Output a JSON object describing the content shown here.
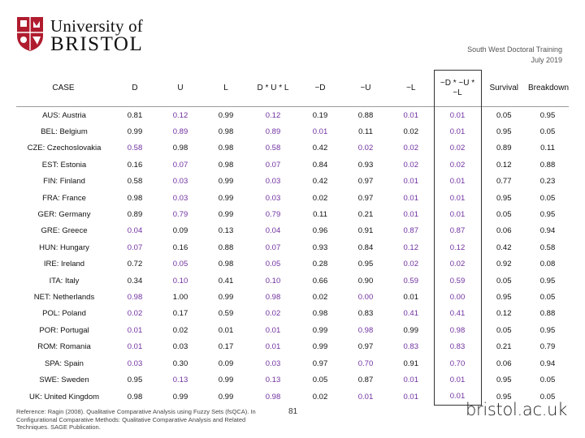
{
  "header": {
    "logo_line1": "University of",
    "logo_line2": "BRISTOL",
    "note_line1": "South West Doctoral Training",
    "note_line2": "July 2019"
  },
  "table": {
    "columns": [
      "CASE",
      "D",
      "U",
      "L",
      "D * U * L",
      "~D",
      "~U",
      "~L",
      "~D * ~U * ~L",
      "Survival",
      "Breakdown"
    ],
    "rows": [
      {
        "case": "AUS: Austria",
        "values": [
          [
            "0.81",
            "d"
          ],
          [
            "0.12",
            "p"
          ],
          [
            "0.99",
            "d"
          ],
          [
            "0.12",
            "p"
          ],
          [
            "0.19",
            "d"
          ],
          [
            "0.88",
            "d"
          ],
          [
            "0.01",
            "p"
          ],
          [
            "0.01",
            "p"
          ],
          [
            "0.05",
            "d"
          ],
          [
            "0.95",
            "d"
          ]
        ]
      },
      {
        "case": "BEL: Belgium",
        "values": [
          [
            "0.99",
            "d"
          ],
          [
            "0.89",
            "p"
          ],
          [
            "0.98",
            "d"
          ],
          [
            "0.89",
            "p"
          ],
          [
            "0.01",
            "p"
          ],
          [
            "0.11",
            "d"
          ],
          [
            "0.02",
            "d"
          ],
          [
            "0.01",
            "p"
          ],
          [
            "0.95",
            "d"
          ],
          [
            "0.05",
            "d"
          ]
        ]
      },
      {
        "case": "CZE: Czechoslovakia",
        "values": [
          [
            "0.58",
            "p"
          ],
          [
            "0.98",
            "d"
          ],
          [
            "0.98",
            "d"
          ],
          [
            "0.58",
            "p"
          ],
          [
            "0.42",
            "d"
          ],
          [
            "0.02",
            "p"
          ],
          [
            "0.02",
            "p"
          ],
          [
            "0.02",
            "p"
          ],
          [
            "0.89",
            "d"
          ],
          [
            "0.11",
            "d"
          ]
        ]
      },
      {
        "case": "EST: Estonia",
        "values": [
          [
            "0.16",
            "d"
          ],
          [
            "0.07",
            "p"
          ],
          [
            "0.98",
            "d"
          ],
          [
            "0.07",
            "p"
          ],
          [
            "0.84",
            "d"
          ],
          [
            "0.93",
            "d"
          ],
          [
            "0.02",
            "p"
          ],
          [
            "0.02",
            "p"
          ],
          [
            "0.12",
            "d"
          ],
          [
            "0.88",
            "d"
          ]
        ]
      },
      {
        "case": "FIN: Finland",
        "values": [
          [
            "0.58",
            "d"
          ],
          [
            "0.03",
            "p"
          ],
          [
            "0.99",
            "d"
          ],
          [
            "0.03",
            "p"
          ],
          [
            "0.42",
            "d"
          ],
          [
            "0.97",
            "d"
          ],
          [
            "0.01",
            "p"
          ],
          [
            "0.01",
            "p"
          ],
          [
            "0.77",
            "d"
          ],
          [
            "0.23",
            "d"
          ]
        ]
      },
      {
        "case": "FRA: France",
        "values": [
          [
            "0.98",
            "d"
          ],
          [
            "0.03",
            "p"
          ],
          [
            "0.99",
            "d"
          ],
          [
            "0.03",
            "p"
          ],
          [
            "0.02",
            "d"
          ],
          [
            "0.97",
            "d"
          ],
          [
            "0.01",
            "p"
          ],
          [
            "0.01",
            "p"
          ],
          [
            "0.95",
            "d"
          ],
          [
            "0.05",
            "d"
          ]
        ]
      },
      {
        "case": "GER: Germany",
        "values": [
          [
            "0.89",
            "d"
          ],
          [
            "0.79",
            "p"
          ],
          [
            "0.99",
            "d"
          ],
          [
            "0.79",
            "p"
          ],
          [
            "0.11",
            "d"
          ],
          [
            "0.21",
            "d"
          ],
          [
            "0.01",
            "p"
          ],
          [
            "0.01",
            "p"
          ],
          [
            "0.05",
            "d"
          ],
          [
            "0.95",
            "d"
          ]
        ]
      },
      {
        "case": "GRE: Greece",
        "values": [
          [
            "0.04",
            "p"
          ],
          [
            "0.09",
            "d"
          ],
          [
            "0.13",
            "d"
          ],
          [
            "0.04",
            "p"
          ],
          [
            "0.96",
            "d"
          ],
          [
            "0.91",
            "d"
          ],
          [
            "0.87",
            "p"
          ],
          [
            "0.87",
            "p"
          ],
          [
            "0.06",
            "d"
          ],
          [
            "0.94",
            "d"
          ]
        ]
      },
      {
        "case": "HUN: Hungary",
        "values": [
          [
            "0.07",
            "p"
          ],
          [
            "0.16",
            "d"
          ],
          [
            "0.88",
            "d"
          ],
          [
            "0.07",
            "p"
          ],
          [
            "0.93",
            "d"
          ],
          [
            "0.84",
            "d"
          ],
          [
            "0.12",
            "p"
          ],
          [
            "0.12",
            "p"
          ],
          [
            "0.42",
            "d"
          ],
          [
            "0.58",
            "d"
          ]
        ]
      },
      {
        "case": "IRE: Ireland",
        "values": [
          [
            "0.72",
            "d"
          ],
          [
            "0.05",
            "p"
          ],
          [
            "0.98",
            "d"
          ],
          [
            "0.05",
            "p"
          ],
          [
            "0.28",
            "d"
          ],
          [
            "0.95",
            "d"
          ],
          [
            "0.02",
            "p"
          ],
          [
            "0.02",
            "p"
          ],
          [
            "0.92",
            "d"
          ],
          [
            "0.08",
            "d"
          ]
        ]
      },
      {
        "case": "ITA: Italy",
        "values": [
          [
            "0.34",
            "d"
          ],
          [
            "0.10",
            "p"
          ],
          [
            "0.41",
            "d"
          ],
          [
            "0.10",
            "p"
          ],
          [
            "0.66",
            "d"
          ],
          [
            "0.90",
            "d"
          ],
          [
            "0.59",
            "p"
          ],
          [
            "0.59",
            "p"
          ],
          [
            "0.05",
            "d"
          ],
          [
            "0.95",
            "d"
          ]
        ]
      },
      {
        "case": "NET: Netherlands",
        "values": [
          [
            "0.98",
            "p"
          ],
          [
            "1.00",
            "d"
          ],
          [
            "0.99",
            "d"
          ],
          [
            "0.98",
            "p"
          ],
          [
            "0.02",
            "d"
          ],
          [
            "0.00",
            "p"
          ],
          [
            "0.01",
            "d"
          ],
          [
            "0.00",
            "p"
          ],
          [
            "0.95",
            "d"
          ],
          [
            "0.05",
            "d"
          ]
        ]
      },
      {
        "case": "POL: Poland",
        "values": [
          [
            "0.02",
            "p"
          ],
          [
            "0.17",
            "d"
          ],
          [
            "0.59",
            "d"
          ],
          [
            "0.02",
            "p"
          ],
          [
            "0.98",
            "d"
          ],
          [
            "0.83",
            "d"
          ],
          [
            "0.41",
            "p"
          ],
          [
            "0.41",
            "p"
          ],
          [
            "0.12",
            "d"
          ],
          [
            "0.88",
            "d"
          ]
        ]
      },
      {
        "case": "POR: Portugal",
        "values": [
          [
            "0.01",
            "p"
          ],
          [
            "0.02",
            "d"
          ],
          [
            "0.01",
            "d"
          ],
          [
            "0.01",
            "p"
          ],
          [
            "0.99",
            "d"
          ],
          [
            "0.98",
            "p"
          ],
          [
            "0.99",
            "d"
          ],
          [
            "0.98",
            "p"
          ],
          [
            "0.05",
            "d"
          ],
          [
            "0.95",
            "d"
          ]
        ]
      },
      {
        "case": "ROM: Romania",
        "values": [
          [
            "0.01",
            "p"
          ],
          [
            "0.03",
            "d"
          ],
          [
            "0.17",
            "d"
          ],
          [
            "0.01",
            "p"
          ],
          [
            "0.99",
            "d"
          ],
          [
            "0.97",
            "d"
          ],
          [
            "0.83",
            "p"
          ],
          [
            "0.83",
            "p"
          ],
          [
            "0.21",
            "d"
          ],
          [
            "0.79",
            "d"
          ]
        ]
      },
      {
        "case": "SPA: Spain",
        "values": [
          [
            "0.03",
            "p"
          ],
          [
            "0.30",
            "d"
          ],
          [
            "0.09",
            "d"
          ],
          [
            "0.03",
            "p"
          ],
          [
            "0.97",
            "d"
          ],
          [
            "0.70",
            "p"
          ],
          [
            "0.91",
            "d"
          ],
          [
            "0.70",
            "p"
          ],
          [
            "0.06",
            "d"
          ],
          [
            "0.94",
            "d"
          ]
        ]
      },
      {
        "case": "SWE: Sweden",
        "values": [
          [
            "0.95",
            "d"
          ],
          [
            "0.13",
            "p"
          ],
          [
            "0.99",
            "d"
          ],
          [
            "0.13",
            "p"
          ],
          [
            "0.05",
            "d"
          ],
          [
            "0.87",
            "d"
          ],
          [
            "0.01",
            "p"
          ],
          [
            "0.01",
            "p"
          ],
          [
            "0.95",
            "d"
          ],
          [
            "0.05",
            "d"
          ]
        ]
      },
      {
        "case": "UK: United Kingdom",
        "values": [
          [
            "0.98",
            "d"
          ],
          [
            "0.99",
            "d"
          ],
          [
            "0.99",
            "d"
          ],
          [
            "0.98",
            "p"
          ],
          [
            "0.02",
            "d"
          ],
          [
            "0.01",
            "p"
          ],
          [
            "0.01",
            "p"
          ],
          [
            "0.01",
            "p"
          ],
          [
            "0.95",
            "d"
          ],
          [
            "0.05",
            "d"
          ]
        ]
      }
    ]
  },
  "footer": {
    "reference": "Reference: Ragin (2008). Qualitative Comparative Analysis using Fuzzy Sets (fsQCA). In Configurational Comparative Methods: Qualitative Comparative Analysis and Related Techniques. SAGE Publication.",
    "page_number": "81",
    "site": "bristol.ac.uk"
  },
  "colors": {
    "highlight": "#7030a0",
    "brand_red": "#b01c2e",
    "text": "#111111"
  },
  "icons": [
    "university-crest-icon"
  ]
}
